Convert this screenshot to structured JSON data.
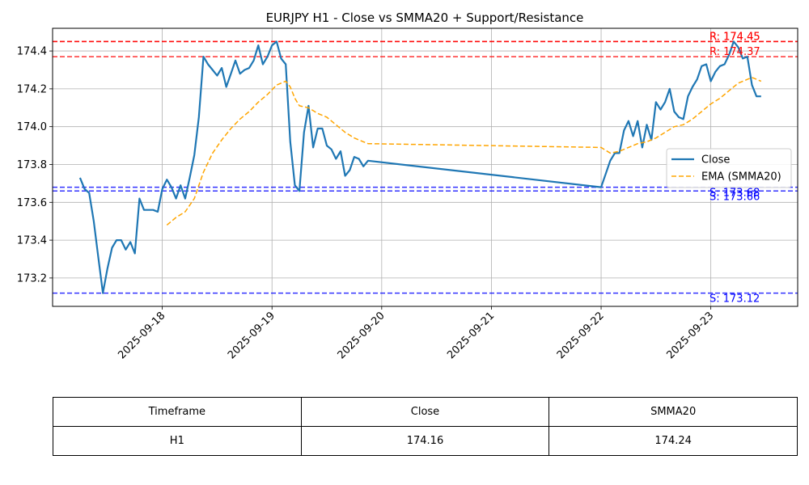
{
  "chart_data": {
    "type": "line",
    "title": "EURJPY H1 - Close vs SMMA20 + Support/Resistance",
    "xlabel": "",
    "ylabel": "",
    "x_ticks": [
      "2025-09-18",
      "2025-09-19",
      "2025-09-20",
      "2025-09-21",
      "2025-09-22",
      "2025-09-23"
    ],
    "x_range": [
      "2025-09-17 00:00",
      "2025-09-23 19:00"
    ],
    "ylim": [
      173.05,
      174.52
    ],
    "y_ticks": [
      173.2,
      173.4,
      173.6,
      173.8,
      174.0,
      174.2,
      174.4
    ],
    "grid": true,
    "legend_position": "center-right",
    "series": [
      {
        "name": "Close",
        "style": "solid",
        "color": "#1f77b4",
        "points": [
          [
            "2025-09-17 06:00",
            173.73
          ],
          [
            "2025-09-17 07:00",
            173.67
          ],
          [
            "2025-09-17 08:00",
            173.65
          ],
          [
            "2025-09-17 09:00",
            173.5
          ],
          [
            "2025-09-17 10:00",
            173.31
          ],
          [
            "2025-09-17 11:00",
            173.12
          ],
          [
            "2025-09-17 12:00",
            173.25
          ],
          [
            "2025-09-17 13:00",
            173.36
          ],
          [
            "2025-09-17 14:00",
            173.4
          ],
          [
            "2025-09-17 15:00",
            173.4
          ],
          [
            "2025-09-17 16:00",
            173.35
          ],
          [
            "2025-09-17 17:00",
            173.39
          ],
          [
            "2025-09-17 18:00",
            173.33
          ],
          [
            "2025-09-17 19:00",
            173.62
          ],
          [
            "2025-09-17 20:00",
            173.56
          ],
          [
            "2025-09-17 21:00",
            173.56
          ],
          [
            "2025-09-17 22:00",
            173.56
          ],
          [
            "2025-09-17 23:00",
            173.55
          ],
          [
            "2025-09-18 00:00",
            173.67
          ],
          [
            "2025-09-18 01:00",
            173.72
          ],
          [
            "2025-09-18 02:00",
            173.68
          ],
          [
            "2025-09-18 03:00",
            173.62
          ],
          [
            "2025-09-18 04:00",
            173.69
          ],
          [
            "2025-09-18 05:00",
            173.62
          ],
          [
            "2025-09-18 06:00",
            173.73
          ],
          [
            "2025-09-18 07:00",
            173.85
          ],
          [
            "2025-09-18 08:00",
            174.05
          ],
          [
            "2025-09-18 09:00",
            174.37
          ],
          [
            "2025-09-18 10:00",
            174.33
          ],
          [
            "2025-09-18 11:00",
            174.3
          ],
          [
            "2025-09-18 12:00",
            174.27
          ],
          [
            "2025-09-18 13:00",
            174.31
          ],
          [
            "2025-09-18 14:00",
            174.21
          ],
          [
            "2025-09-18 15:00",
            174.28
          ],
          [
            "2025-09-18 16:00",
            174.35
          ],
          [
            "2025-09-18 17:00",
            174.28
          ],
          [
            "2025-09-18 18:00",
            174.3
          ],
          [
            "2025-09-18 19:00",
            174.31
          ],
          [
            "2025-09-18 20:00",
            174.35
          ],
          [
            "2025-09-18 21:00",
            174.43
          ],
          [
            "2025-09-18 22:00",
            174.33
          ],
          [
            "2025-09-18 23:00",
            174.37
          ],
          [
            "2025-09-19 00:00",
            174.43
          ],
          [
            "2025-09-19 01:00",
            174.45
          ],
          [
            "2025-09-19 02:00",
            174.36
          ],
          [
            "2025-09-19 03:00",
            174.33
          ],
          [
            "2025-09-19 04:00",
            173.92
          ],
          [
            "2025-09-19 05:00",
            173.69
          ],
          [
            "2025-09-19 06:00",
            173.66
          ],
          [
            "2025-09-19 07:00",
            173.97
          ],
          [
            "2025-09-19 08:00",
            174.11
          ],
          [
            "2025-09-19 09:00",
            173.89
          ],
          [
            "2025-09-19 10:00",
            173.99
          ],
          [
            "2025-09-19 11:00",
            173.99
          ],
          [
            "2025-09-19 12:00",
            173.9
          ],
          [
            "2025-09-19 13:00",
            173.88
          ],
          [
            "2025-09-19 14:00",
            173.83
          ],
          [
            "2025-09-19 15:00",
            173.87
          ],
          [
            "2025-09-19 16:00",
            173.74
          ],
          [
            "2025-09-19 17:00",
            173.77
          ],
          [
            "2025-09-19 18:00",
            173.84
          ],
          [
            "2025-09-19 19:00",
            173.83
          ],
          [
            "2025-09-19 20:00",
            173.79
          ],
          [
            "2025-09-19 21:00",
            173.82
          ],
          [
            "2025-09-22 00:00",
            173.68
          ],
          [
            "2025-09-22 01:00",
            173.75
          ],
          [
            "2025-09-22 02:00",
            173.82
          ],
          [
            "2025-09-22 03:00",
            173.86
          ],
          [
            "2025-09-22 04:00",
            173.86
          ],
          [
            "2025-09-22 05:00",
            173.98
          ],
          [
            "2025-09-22 06:00",
            174.03
          ],
          [
            "2025-09-22 07:00",
            173.95
          ],
          [
            "2025-09-22 08:00",
            174.03
          ],
          [
            "2025-09-22 09:00",
            173.89
          ],
          [
            "2025-09-22 10:00",
            174.01
          ],
          [
            "2025-09-22 11:00",
            173.93
          ],
          [
            "2025-09-22 12:00",
            174.13
          ],
          [
            "2025-09-22 13:00",
            174.09
          ],
          [
            "2025-09-22 14:00",
            174.13
          ],
          [
            "2025-09-22 15:00",
            174.2
          ],
          [
            "2025-09-22 16:00",
            174.08
          ],
          [
            "2025-09-22 17:00",
            174.05
          ],
          [
            "2025-09-22 18:00",
            174.04
          ],
          [
            "2025-09-22 19:00",
            174.16
          ],
          [
            "2025-09-22 20:00",
            174.21
          ],
          [
            "2025-09-22 21:00",
            174.25
          ],
          [
            "2025-09-22 22:00",
            174.32
          ],
          [
            "2025-09-22 23:00",
            174.33
          ],
          [
            "2025-09-23 00:00",
            174.24
          ],
          [
            "2025-09-23 01:00",
            174.29
          ],
          [
            "2025-09-23 02:00",
            174.32
          ],
          [
            "2025-09-23 03:00",
            174.33
          ],
          [
            "2025-09-23 04:00",
            174.38
          ],
          [
            "2025-09-23 05:00",
            174.45
          ],
          [
            "2025-09-23 06:00",
            174.42
          ],
          [
            "2025-09-23 07:00",
            174.36
          ],
          [
            "2025-09-23 08:00",
            174.37
          ],
          [
            "2025-09-23 09:00",
            174.22
          ],
          [
            "2025-09-23 10:00",
            174.16
          ],
          [
            "2025-09-23 11:00",
            174.16
          ]
        ]
      },
      {
        "name": "EMA (SMMA20)",
        "style": "dashed",
        "color": "#ffa500",
        "points": [
          [
            "2025-09-18 01:00",
            173.48
          ],
          [
            "2025-09-18 03:00",
            173.52
          ],
          [
            "2025-09-18 05:00",
            173.55
          ],
          [
            "2025-09-18 07:00",
            173.62
          ],
          [
            "2025-09-18 09:00",
            173.76
          ],
          [
            "2025-09-18 11:00",
            173.86
          ],
          [
            "2025-09-18 13:00",
            173.93
          ],
          [
            "2025-09-18 15:00",
            173.99
          ],
          [
            "2025-09-18 17:00",
            174.04
          ],
          [
            "2025-09-18 19:00",
            174.08
          ],
          [
            "2025-09-18 21:00",
            174.13
          ],
          [
            "2025-09-18 23:00",
            174.17
          ],
          [
            "2025-09-19 01:00",
            174.22
          ],
          [
            "2025-09-19 03:00",
            174.24
          ],
          [
            "2025-09-19 04:00",
            174.21
          ],
          [
            "2025-09-19 05:00",
            174.15
          ],
          [
            "2025-09-19 06:00",
            174.11
          ],
          [
            "2025-09-19 08:00",
            174.1
          ],
          [
            "2025-09-19 10:00",
            174.07
          ],
          [
            "2025-09-19 12:00",
            174.05
          ],
          [
            "2025-09-19 14:00",
            174.01
          ],
          [
            "2025-09-19 16:00",
            173.97
          ],
          [
            "2025-09-19 18:00",
            173.94
          ],
          [
            "2025-09-19 20:00",
            173.92
          ],
          [
            "2025-09-19 21:00",
            173.91
          ],
          [
            "2025-09-22 00:00",
            173.89
          ],
          [
            "2025-09-22 02:00",
            173.86
          ],
          [
            "2025-09-22 04:00",
            173.87
          ],
          [
            "2025-09-22 06:00",
            173.89
          ],
          [
            "2025-09-22 08:00",
            173.91
          ],
          [
            "2025-09-22 10:00",
            173.92
          ],
          [
            "2025-09-22 12:00",
            173.94
          ],
          [
            "2025-09-22 14:00",
            173.97
          ],
          [
            "2025-09-22 16:00",
            174.0
          ],
          [
            "2025-09-22 18:00",
            174.01
          ],
          [
            "2025-09-22 20:00",
            174.04
          ],
          [
            "2025-09-22 22:00",
            174.08
          ],
          [
            "2025-09-23 00:00",
            174.12
          ],
          [
            "2025-09-23 02:00",
            174.15
          ],
          [
            "2025-09-23 04:00",
            174.19
          ],
          [
            "2025-09-23 06:00",
            174.23
          ],
          [
            "2025-09-23 08:00",
            174.25
          ],
          [
            "2025-09-23 09:00",
            174.26
          ],
          [
            "2025-09-23 11:00",
            174.24
          ]
        ]
      }
    ],
    "levels": [
      {
        "kind": "resistance",
        "value": 174.45,
        "label": "R: 174.45",
        "color": "#ff0000"
      },
      {
        "kind": "resistance",
        "value": 174.45,
        "label": "R: 174.45",
        "color": "#ff0000"
      },
      {
        "kind": "resistance",
        "value": 174.37,
        "label": "R: 174.37",
        "color": "#ff0000"
      },
      {
        "kind": "support",
        "value": 173.68,
        "label": "S: 173.68",
        "color": "#0000ff"
      },
      {
        "kind": "support",
        "value": 173.66,
        "label": "S: 173.66",
        "color": "#0000ff"
      },
      {
        "kind": "support",
        "value": 173.12,
        "label": "S: 173.12",
        "color": "#0000ff"
      }
    ]
  },
  "table": {
    "headers": [
      "Timeframe",
      "Close",
      "SMMA20"
    ],
    "row": [
      "H1",
      "174.16",
      "174.24"
    ]
  }
}
